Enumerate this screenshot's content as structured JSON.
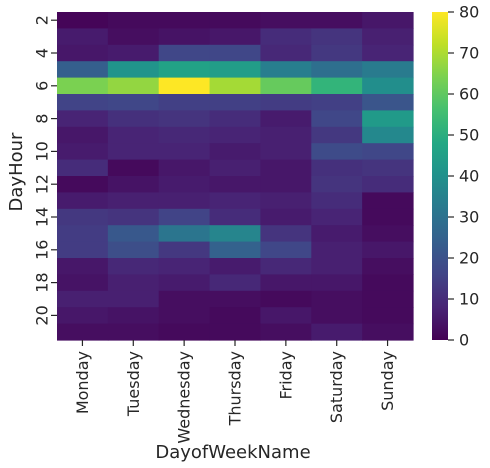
{
  "chart_data": {
    "type": "heatmap",
    "title": "",
    "xlabel": "DayofWeekName",
    "ylabel": "DayHour",
    "x_categories": [
      "Monday",
      "Tuesday",
      "Wednesday",
      "Thursday",
      "Friday",
      "Saturday",
      "Sunday"
    ],
    "y_categories": [
      2,
      3,
      4,
      5,
      6,
      7,
      8,
      9,
      10,
      11,
      12,
      13,
      14,
      15,
      16,
      17,
      18,
      19,
      20,
      21
    ],
    "y_tick_labels": [
      "2",
      "4",
      "6",
      "8",
      "10",
      "12",
      "14",
      "16",
      "18",
      "20"
    ],
    "values": [
      [
        1,
        2,
        2,
        2,
        3,
        3,
        5
      ],
      [
        6,
        3,
        4,
        5,
        10,
        12,
        7
      ],
      [
        5,
        6,
        17,
        17,
        9,
        13,
        8
      ],
      [
        24,
        41,
        46,
        44,
        34,
        29,
        33
      ],
      [
        64,
        67,
        80,
        69,
        61,
        52,
        39
      ],
      [
        16,
        17,
        15,
        15,
        14,
        15,
        21
      ],
      [
        8,
        11,
        12,
        10,
        6,
        17,
        43
      ],
      [
        5,
        8,
        9,
        8,
        7,
        13,
        37
      ],
      [
        6,
        8,
        8,
        6,
        7,
        18,
        17
      ],
      [
        10,
        2,
        5,
        7,
        5,
        11,
        12
      ],
      [
        2,
        4,
        6,
        5,
        5,
        12,
        10
      ],
      [
        6,
        7,
        7,
        8,
        7,
        10,
        2
      ],
      [
        13,
        12,
        16,
        10,
        6,
        8,
        2
      ],
      [
        14,
        22,
        31,
        36,
        12,
        6,
        3
      ],
      [
        14,
        19,
        13,
        25,
        17,
        7,
        5
      ],
      [
        5,
        9,
        8,
        6,
        9,
        7,
        3
      ],
      [
        4,
        7,
        6,
        9,
        5,
        5,
        2
      ],
      [
        7,
        7,
        3,
        3,
        2,
        3,
        2
      ],
      [
        5,
        4,
        3,
        2,
        5,
        3,
        2
      ],
      [
        3,
        3,
        2,
        2,
        3,
        6,
        3
      ]
    ],
    "colorbar": {
      "min": 0,
      "max": 80,
      "ticks": [
        0,
        10,
        20,
        30,
        40,
        50,
        60,
        70,
        80
      ]
    },
    "colormap": "viridis",
    "grid": false,
    "legend": "colorbar-right"
  }
}
